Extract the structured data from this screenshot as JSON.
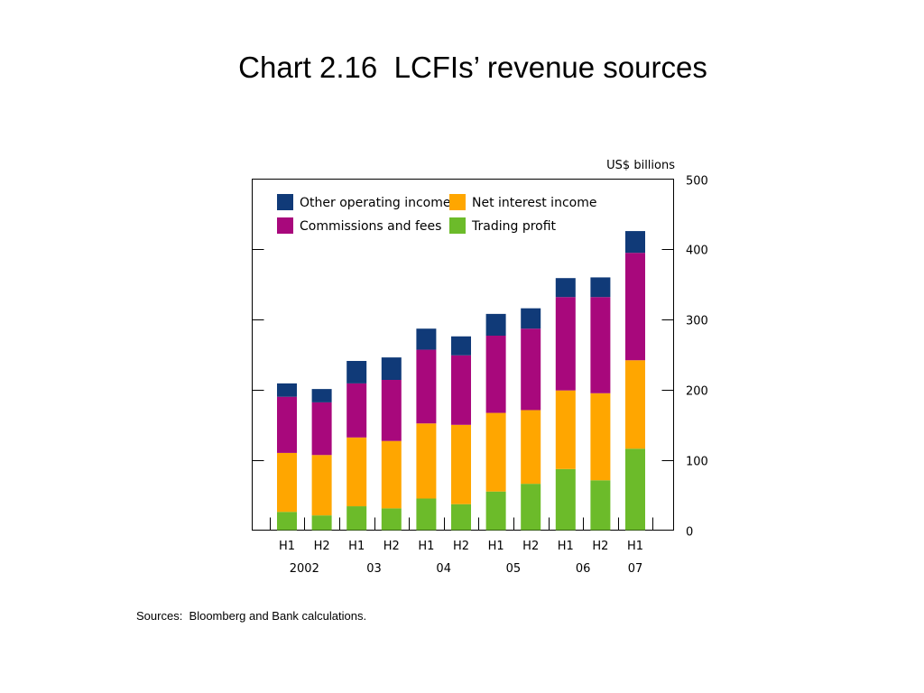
{
  "title": "Chart 2.16  LCFIs’ revenue sources",
  "footer": {
    "sources": "Sources:  Bloomberg and Bank calculations."
  },
  "chart_data": {
    "type": "bar",
    "stacked": true,
    "unit": "US$ billions",
    "categories": [
      "H1",
      "H2",
      "H1",
      "H2",
      "H1",
      "H2",
      "H1",
      "H2",
      "H1",
      "H2",
      "H1"
    ],
    "year_labels": [
      "2002",
      "03",
      "04",
      "05",
      "06",
      "07"
    ],
    "year_groups": [
      {
        "label": "2002",
        "from": 0,
        "to": 1
      },
      {
        "label": "03",
        "from": 2,
        "to": 3
      },
      {
        "label": "04",
        "from": 4,
        "to": 5
      },
      {
        "label": "05",
        "from": 6,
        "to": 7
      },
      {
        "label": "06",
        "from": 8,
        "to": 9
      },
      {
        "label": "07",
        "from": 10,
        "to": 10
      }
    ],
    "y_ticks": [
      0,
      100,
      200,
      300,
      400,
      500
    ],
    "ylim": [
      0,
      500
    ],
    "legend_position": "top-left (inside plot)",
    "series": [
      {
        "name": "Trading profit",
        "color": "#6cbb2a",
        "values": [
          26,
          21,
          34,
          31,
          45,
          37,
          55,
          66,
          87,
          71,
          116
        ]
      },
      {
        "name": "Net interest income",
        "color": "#ffa600",
        "values": [
          84,
          86,
          98,
          96,
          107,
          113,
          112,
          105,
          112,
          124,
          126
        ]
      },
      {
        "name": "Commissions and fees",
        "color": "#a8087c",
        "values": [
          80,
          75,
          77,
          87,
          105,
          99,
          110,
          116,
          133,
          137,
          153
        ]
      },
      {
        "name": "Other operating income",
        "color": "#103a78",
        "values": [
          19,
          19,
          32,
          32,
          30,
          27,
          31,
          29,
          27,
          28,
          31
        ]
      }
    ],
    "legend_order": [
      "Other operating income",
      "Net interest income",
      "Commissions and fees",
      "Trading profit"
    ]
  }
}
